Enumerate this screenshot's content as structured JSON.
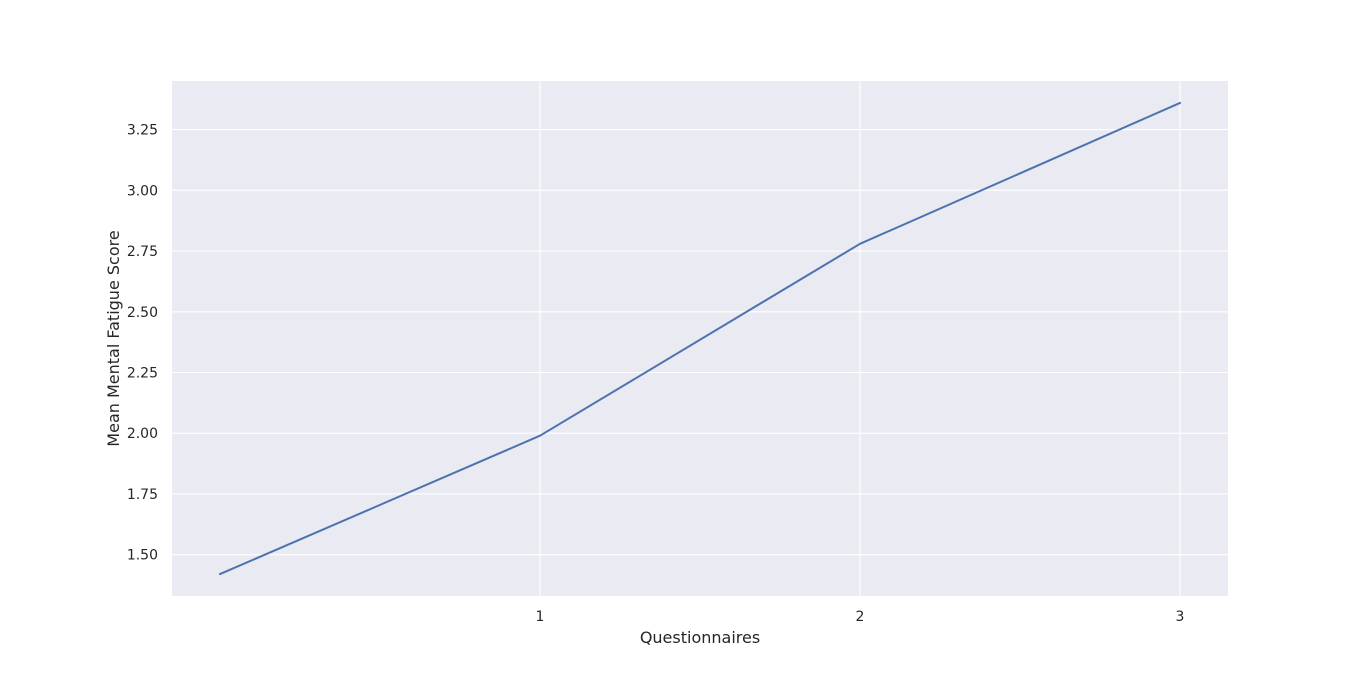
{
  "chart_data": {
    "type": "line",
    "title": "",
    "xlabel": "Questionnaires",
    "ylabel": "Mean Mental Fatigue Score",
    "x_ticks": [
      1,
      2,
      3
    ],
    "y_ticks": [
      "1.50",
      "1.75",
      "2.00",
      "2.25",
      "2.50",
      "2.75",
      "3.00",
      "3.25"
    ],
    "xlim": [
      -0.15,
      3.15
    ],
    "ylim": [
      1.33,
      3.45
    ],
    "grid": true,
    "series": [
      {
        "x": [
          0,
          1,
          2,
          3
        ],
        "values": [
          1.42,
          1.99,
          2.78,
          3.36
        ]
      }
    ],
    "colors": {
      "background": "#eaeaf2",
      "grid": "#ffffff",
      "line": "#4c72b0"
    }
  }
}
